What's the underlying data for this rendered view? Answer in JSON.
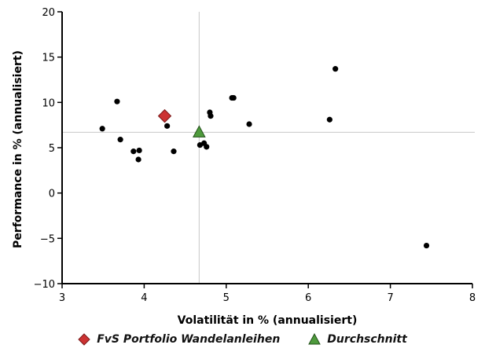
{
  "chart_data": {
    "type": "scatter",
    "xlabel": "Volatilität in % (annualisiert)",
    "ylabel": "Performance in % (annualisiert)",
    "xlim": [
      3,
      8
    ],
    "ylim": [
      -10,
      20
    ],
    "xticks": [
      "3",
      "4",
      "5",
      "6",
      "7",
      "8"
    ],
    "yticks": [
      "−10",
      "−5",
      "0",
      "5",
      "10",
      "15",
      "20"
    ],
    "grid": false,
    "legend_position": "bottom",
    "reference_lines": {
      "x": 4.67,
      "y": 6.7
    },
    "series": [
      {
        "name": "",
        "marker": "circle",
        "color": "#000000",
        "points": [
          {
            "x": 3.49,
            "y": 7.1
          },
          {
            "x": 3.67,
            "y": 10.1
          },
          {
            "x": 3.71,
            "y": 5.9
          },
          {
            "x": 3.87,
            "y": 4.6
          },
          {
            "x": 3.93,
            "y": 3.7
          },
          {
            "x": 3.94,
            "y": 4.7
          },
          {
            "x": 4.28,
            "y": 7.4
          },
          {
            "x": 4.36,
            "y": 4.6
          },
          {
            "x": 4.68,
            "y": 5.3
          },
          {
            "x": 4.73,
            "y": 5.5
          },
          {
            "x": 4.76,
            "y": 5.1
          },
          {
            "x": 4.8,
            "y": 8.9
          },
          {
            "x": 4.81,
            "y": 8.5
          },
          {
            "x": 5.07,
            "y": 10.5
          },
          {
            "x": 5.09,
            "y": 10.5
          },
          {
            "x": 5.28,
            "y": 7.6
          },
          {
            "x": 6.26,
            "y": 8.1
          },
          {
            "x": 6.33,
            "y": 13.7
          },
          {
            "x": 7.44,
            "y": -5.8
          }
        ]
      },
      {
        "name": "FvS Portfolio Wandelanleihen",
        "marker": "diamond",
        "color": "#cc3333",
        "points": [
          {
            "x": 4.25,
            "y": 8.5
          }
        ]
      },
      {
        "name": "Durchschnitt",
        "marker": "triangle",
        "color": "#4e9a3c",
        "points": [
          {
            "x": 4.67,
            "y": 6.7
          }
        ]
      }
    ]
  }
}
